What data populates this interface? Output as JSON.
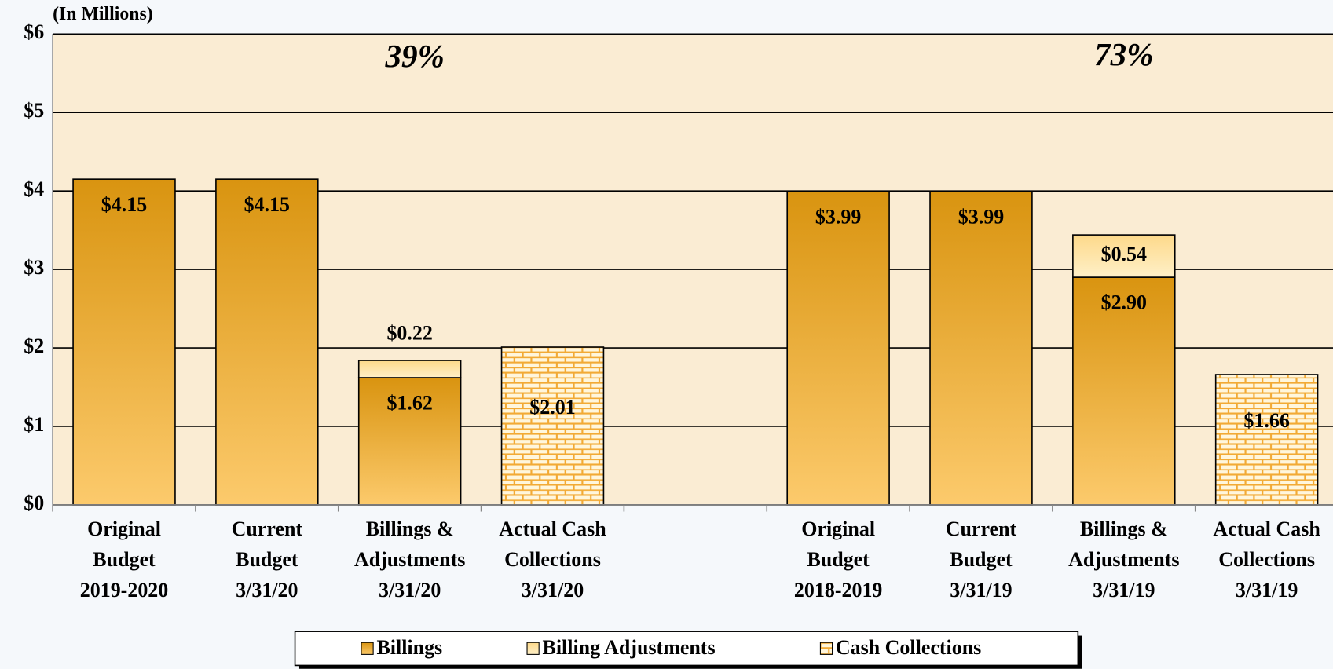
{
  "chart_data": {
    "type": "bar",
    "stacked": true,
    "y_label": "(In Millions)",
    "annotations": [
      "39%",
      "73%"
    ],
    "categories": [
      "Original\nBudget\n2019-2020",
      "Current\nBudget\n3/31/20",
      "Billings &\nAdjustments\n3/31/20",
      "Actual Cash\nCollections\n3/31/20",
      null,
      "Original\nBudget\n2018-2019",
      "Current\nBudget\n3/31/19",
      "Billings &\nAdjustments\n3/31/19",
      "Actual Cash\nCollections\n3/31/19"
    ],
    "series": [
      {
        "name": "Billings",
        "color": "#dc9a14",
        "values": [
          4.15,
          4.15,
          1.62,
          null,
          null,
          3.99,
          3.99,
          2.9,
          null
        ],
        "value_labels": [
          "$4.15",
          "$4.15",
          "$1.62",
          null,
          null,
          "$3.99",
          "$3.99",
          "$2.90",
          null
        ]
      },
      {
        "name": "Billing Adjustments",
        "color": "#fde3a0",
        "values": [
          null,
          null,
          0.22,
          null,
          null,
          null,
          null,
          0.54,
          null
        ],
        "value_labels": [
          null,
          null,
          "$0.22",
          null,
          null,
          null,
          null,
          "$0.54",
          null
        ]
      },
      {
        "name": "Cash Collections",
        "color": "#f2aa35",
        "values": [
          null,
          null,
          null,
          2.01,
          null,
          null,
          null,
          null,
          1.66
        ],
        "value_labels": [
          null,
          null,
          null,
          "$2.01",
          null,
          null,
          null,
          null,
          "$1.66"
        ]
      }
    ],
    "ylim": [
      0,
      6
    ],
    "yticks": [
      {
        "value": 0,
        "label": "$0"
      },
      {
        "value": 1,
        "label": "$1"
      },
      {
        "value": 2,
        "label": "$2"
      },
      {
        "value": 3,
        "label": "$3"
      },
      {
        "value": 4,
        "label": "$4"
      },
      {
        "value": 5,
        "label": "$5"
      },
      {
        "value": 6,
        "label": "$6"
      }
    ],
    "grid": true,
    "legend": "bottom"
  }
}
